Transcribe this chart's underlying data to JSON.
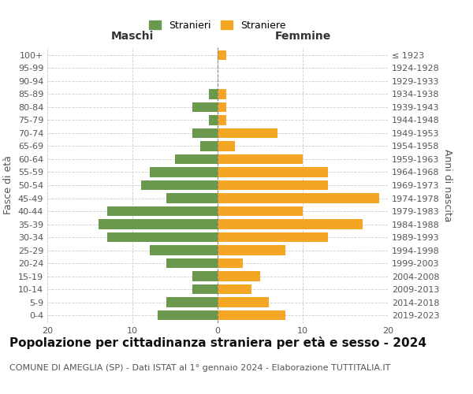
{
  "age_groups": [
    "0-4",
    "5-9",
    "10-14",
    "15-19",
    "20-24",
    "25-29",
    "30-34",
    "35-39",
    "40-44",
    "45-49",
    "50-54",
    "55-59",
    "60-64",
    "65-69",
    "70-74",
    "75-79",
    "80-84",
    "85-89",
    "90-94",
    "95-99",
    "100+"
  ],
  "birth_years": [
    "2019-2023",
    "2014-2018",
    "2009-2013",
    "2004-2008",
    "1999-2003",
    "1994-1998",
    "1989-1993",
    "1984-1988",
    "1979-1983",
    "1974-1978",
    "1969-1973",
    "1964-1968",
    "1959-1963",
    "1954-1958",
    "1949-1953",
    "1944-1948",
    "1939-1943",
    "1934-1938",
    "1929-1933",
    "1924-1928",
    "≤ 1923"
  ],
  "males": [
    7,
    6,
    3,
    3,
    6,
    8,
    13,
    14,
    13,
    6,
    9,
    8,
    5,
    2,
    3,
    1,
    3,
    1,
    0,
    0,
    0
  ],
  "females": [
    8,
    6,
    4,
    5,
    3,
    8,
    13,
    17,
    10,
    19,
    13,
    13,
    10,
    2,
    7,
    1,
    1,
    1,
    0,
    0,
    1
  ],
  "male_color": "#6a994e",
  "female_color": "#f4a523",
  "background_color": "#ffffff",
  "grid_color": "#cccccc",
  "title": "Popolazione per cittadinanza straniera per età e sesso - 2024",
  "subtitle": "COMUNE DI AMEGLIA (SP) - Dati ISTAT al 1° gennaio 2024 - Elaborazione TUTTITALIA.IT",
  "xlabel_left": "Maschi",
  "xlabel_right": "Femmine",
  "ylabel_left": "Fasce di età",
  "ylabel_right": "Anni di nascita",
  "legend_stranieri": "Stranieri",
  "legend_straniere": "Straniere",
  "xlim": 20,
  "title_fontsize": 11,
  "subtitle_fontsize": 8,
  "tick_fontsize": 8,
  "label_fontsize": 9
}
